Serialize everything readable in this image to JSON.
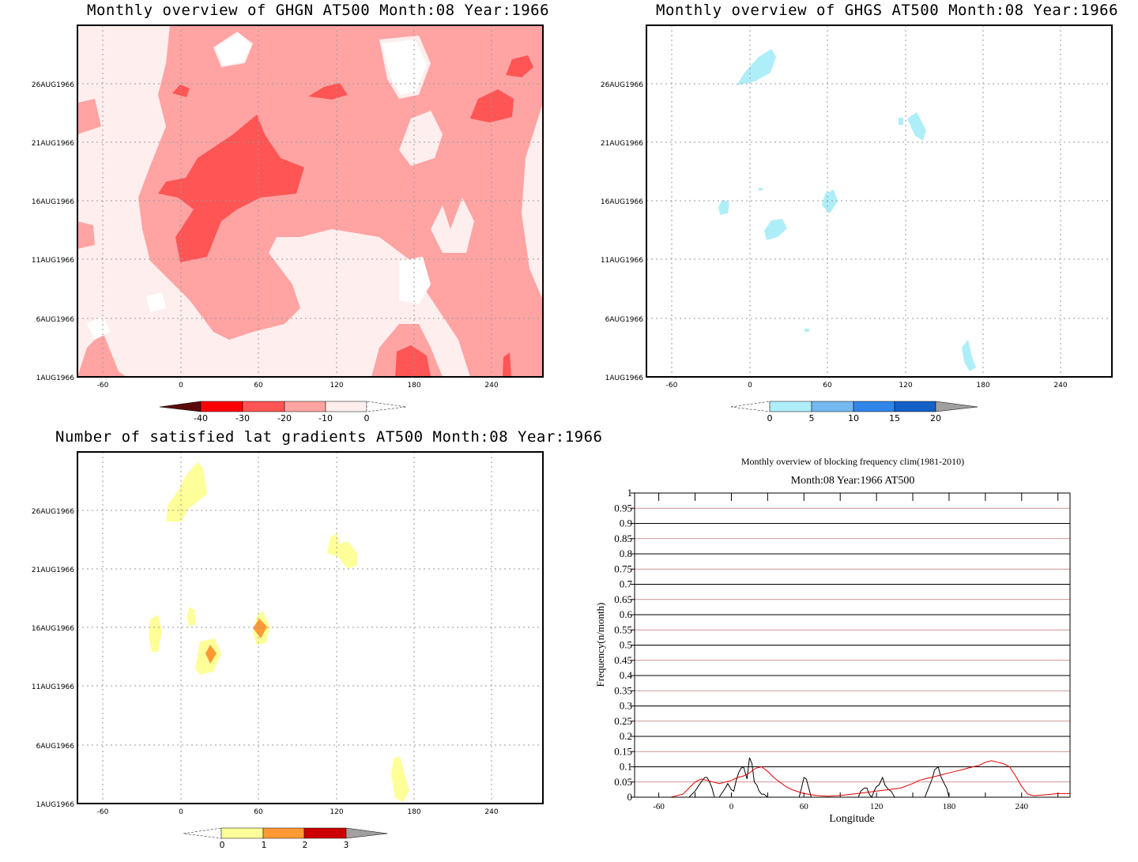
{
  "panels": {
    "ghgn": {
      "title": "Monthly overview of GHGN AT500 Month:08 Year:1966",
      "y_ticks": [
        "1AUG1966",
        "6AUG1966",
        "11AUG1966",
        "16AUG1966",
        "21AUG1966",
        "26AUG1966"
      ],
      "x_ticks": [
        "-60",
        "0",
        "60",
        "120",
        "180",
        "240"
      ],
      "colorbar": {
        "labels": [
          "-40",
          "-30",
          "-20",
          "-10",
          "0"
        ],
        "colors": [
          "#5a0a0a",
          "#ff0000",
          "#ff5555",
          "#ffa3a3",
          "#ffeeee"
        ]
      }
    },
    "ghgs": {
      "title": "Monthly overview of GHGS AT500 Month:08 Year:1966",
      "y_ticks": [
        "1AUG1966",
        "6AUG1966",
        "11AUG1966",
        "16AUG1966",
        "21AUG1966",
        "26AUG1966"
      ],
      "x_ticks": [
        "-60",
        "0",
        "60",
        "120",
        "180",
        "240"
      ],
      "colorbar": {
        "labels": [
          "0",
          "5",
          "10",
          "15",
          "20"
        ],
        "colors": [
          "#aeeef8",
          "#74b9f2",
          "#2f86e8",
          "#1560c8",
          "#a0a0a0"
        ]
      }
    },
    "lat": {
      "title": "Number of satisfied lat gradients AT500 Month:08 Year:1966",
      "y_ticks": [
        "1AUG1966",
        "6AUG1966",
        "11AUG1966",
        "16AUG1966",
        "21AUG1966",
        "26AUG1966"
      ],
      "x_ticks": [
        "-60",
        "0",
        "60",
        "120",
        "180",
        "240"
      ],
      "colorbar": {
        "labels": [
          "0",
          "1",
          "2",
          "3"
        ],
        "colors": [
          "#ffff99",
          "#ff9933",
          "#cc0000",
          "#a0a0a0"
        ]
      }
    }
  },
  "chart_data": {
    "type": "line",
    "title": "Monthly overview of blocking frequency clim(1981-2010)",
    "subtitle": "Month:08 Year:1966  AT500",
    "xlabel": "Longitude",
    "ylabel": "Frequency(n/month)",
    "xlim": [
      -80,
      280
    ],
    "ylim": [
      0,
      1
    ],
    "x_ticks": [
      "-60",
      "0",
      "60",
      "120",
      "180",
      "240"
    ],
    "y_ticks": [
      "0",
      "0.05",
      "0.1",
      "0.15",
      "0.2",
      "0.25",
      "0.3",
      "0.35",
      "0.4",
      "0.45",
      "0.5",
      "0.55",
      "0.6",
      "0.65",
      "0.7",
      "0.75",
      "0.8",
      "0.85",
      "0.9",
      "0.95",
      "1"
    ],
    "series": [
      {
        "color": "#000000",
        "x": [
          -80,
          -35,
          -30,
          -25,
          -22,
          -20,
          -18,
          -16,
          -14,
          -10,
          -5,
          -3,
          0,
          2,
          4,
          6,
          8,
          10,
          13,
          15,
          17,
          19,
          21,
          23,
          25,
          27,
          30,
          56,
          58,
          60,
          62,
          64,
          66,
          80,
          90,
          100,
          105,
          107,
          110,
          112,
          114,
          116,
          118,
          120,
          122,
          125,
          127,
          130,
          132,
          135,
          140,
          150,
          160,
          163,
          166,
          168,
          171,
          173,
          176,
          178,
          180,
          200,
          240,
          280
        ],
        "values": [
          0,
          0,
          0.02,
          0.05,
          0.065,
          0.065,
          0.05,
          0.03,
          0,
          0,
          0.03,
          0.045,
          0.025,
          0.02,
          0.055,
          0.08,
          0.095,
          0.1,
          0.06,
          0.13,
          0.11,
          0.05,
          0.04,
          0.02,
          0.01,
          0.01,
          0,
          0,
          0.03,
          0.065,
          0.06,
          0.03,
          0,
          0,
          0,
          0,
          0,
          0.02,
          0.03,
          0.03,
          0.01,
          0,
          0.02,
          0.035,
          0.04,
          0.065,
          0.04,
          0.025,
          0.02,
          0,
          0,
          0,
          0,
          0.03,
          0.06,
          0.09,
          0.1,
          0.07,
          0.045,
          0.03,
          0,
          0,
          0,
          0
        ]
      },
      {
        "color": "#e00000",
        "x": [
          -80,
          -50,
          -40,
          -35,
          -30,
          -25,
          -20,
          -15,
          -10,
          -5,
          0,
          5,
          10,
          15,
          20,
          25,
          30,
          35,
          40,
          45,
          50,
          60,
          70,
          80,
          90,
          100,
          110,
          120,
          130,
          140,
          150,
          155,
          160,
          165,
          170,
          175,
          180,
          185,
          190,
          195,
          200,
          205,
          210,
          215,
          220,
          225,
          230,
          235,
          240,
          245,
          250,
          260,
          270,
          280
        ],
        "values": [
          0,
          0,
          0.01,
          0.03,
          0.05,
          0.06,
          0.055,
          0.05,
          0.045,
          0.05,
          0.055,
          0.065,
          0.07,
          0.08,
          0.095,
          0.1,
          0.085,
          0.065,
          0.05,
          0.035,
          0.025,
          0.012,
          0.006,
          0.003,
          0.006,
          0.01,
          0.015,
          0.02,
          0.025,
          0.03,
          0.045,
          0.055,
          0.06,
          0.065,
          0.07,
          0.075,
          0.08,
          0.085,
          0.09,
          0.095,
          0.1,
          0.105,
          0.115,
          0.12,
          0.115,
          0.11,
          0.1,
          0.07,
          0.035,
          0.01,
          0.005,
          0.008,
          0.012,
          0.012
        ]
      }
    ]
  }
}
